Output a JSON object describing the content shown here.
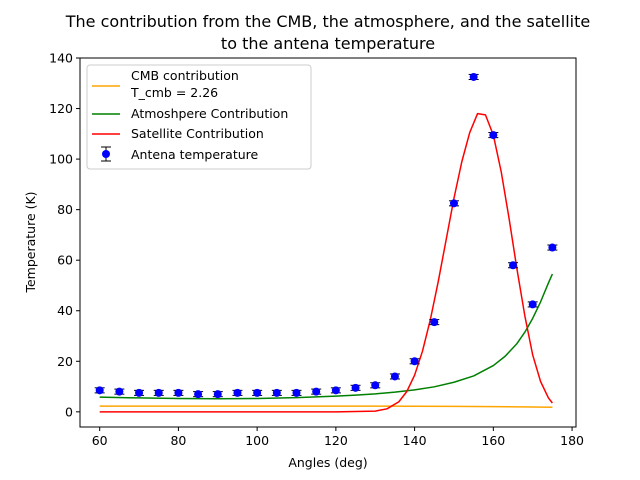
{
  "chart_data": {
    "type": "line",
    "title_line1": "The contribution from the CMB, the atmosphere, and the satellite",
    "title_line2": "to the antena temperature",
    "xlabel": "Angles (deg)",
    "ylabel": "Temperature (K)",
    "xlim": [
      55,
      181
    ],
    "ylim": [
      -6,
      140
    ],
    "xticks": [
      60,
      80,
      100,
      120,
      140,
      160,
      180
    ],
    "yticks": [
      0,
      20,
      40,
      60,
      80,
      100,
      120,
      140
    ],
    "grid": false,
    "legend_placement": "top-left",
    "legend": [
      {
        "label_line1": "CMB contribution",
        "label_line2": "T_cmb = 2.26",
        "color": "#ffa500",
        "kind": "line"
      },
      {
        "label_line1": "Atmoshpere Contribution",
        "label_line2": "",
        "color": "#008000",
        "kind": "line"
      },
      {
        "label_line1": "Satellite Contribution",
        "label_line2": "",
        "color": "#ff0000",
        "kind": "line"
      },
      {
        "label_line1": "Antena temperature",
        "label_line2": "",
        "color": "#0000ff",
        "kind": "errorbar"
      }
    ],
    "series": [
      {
        "name": "CMB contribution",
        "color": "#ffa500",
        "x": [
          60,
          70,
          80,
          90,
          100,
          110,
          120,
          130,
          140,
          150,
          160,
          170,
          175
        ],
        "y": [
          2.26,
          2.26,
          2.26,
          2.26,
          2.26,
          2.26,
          2.25,
          2.24,
          2.2,
          2.15,
          2.05,
          1.9,
          1.8
        ]
      },
      {
        "name": "Atmoshpere Contribution",
        "color": "#008000",
        "x": [
          60,
          70,
          80,
          90,
          100,
          110,
          120,
          125,
          130,
          135,
          140,
          145,
          150,
          155,
          160,
          163,
          166,
          168,
          170,
          172,
          174,
          175
        ],
        "y": [
          5.8,
          5.5,
          5.3,
          5.2,
          5.3,
          5.6,
          6.2,
          6.6,
          7.1,
          7.8,
          8.7,
          9.9,
          11.7,
          14.2,
          18.3,
          22.0,
          27.0,
          31.5,
          37.0,
          43.5,
          51.0,
          54.5
        ]
      },
      {
        "name": "Satellite Contribution",
        "color": "#ff0000",
        "x": [
          60,
          120,
          130,
          133,
          136,
          138,
          140,
          142,
          144,
          146,
          148,
          150,
          152,
          154,
          156,
          158,
          160,
          162,
          164,
          166,
          168,
          170,
          172,
          174,
          175
        ],
        "y": [
          0,
          0,
          0.3,
          1.2,
          4.0,
          8.0,
          14.5,
          24.0,
          36.5,
          51.5,
          68.0,
          84.5,
          99.0,
          110.5,
          118.0,
          117.5,
          109.5,
          95.0,
          76.5,
          56.5,
          38.0,
          22.5,
          12.0,
          5.5,
          3.5
        ]
      },
      {
        "name": "Antena temperature",
        "color": "#0000ff",
        "x": [
          60,
          65,
          70,
          75,
          80,
          85,
          90,
          95,
          100,
          105,
          110,
          115,
          120,
          125,
          130,
          135,
          140,
          145,
          150,
          155,
          160,
          165,
          170,
          175
        ],
        "y": [
          8.5,
          8.0,
          7.5,
          7.5,
          7.5,
          7.0,
          7.0,
          7.5,
          7.5,
          7.5,
          7.5,
          8.0,
          8.5,
          9.5,
          10.5,
          14.0,
          20.0,
          35.5,
          82.5,
          132.5,
          109.5,
          58.0,
          42.5,
          65.0
        ],
        "yerr": 1.0
      }
    ]
  }
}
